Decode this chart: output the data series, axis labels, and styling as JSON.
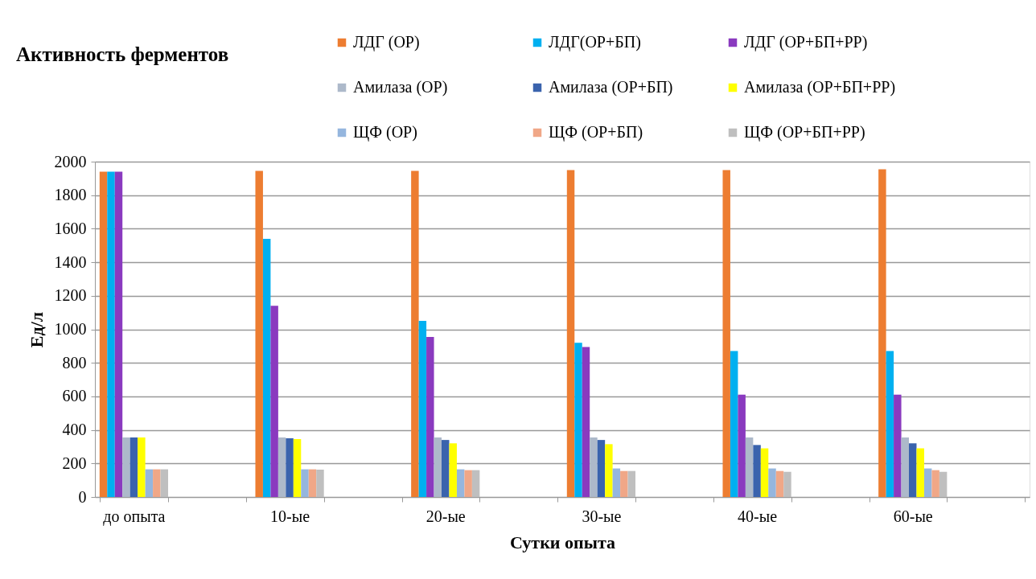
{
  "chart_data": {
    "type": "bar",
    "title": "Активность ферментов",
    "xlabel": "Сутки опыта",
    "ylabel": "Ед/л",
    "categories": [
      "до опыта",
      null,
      "10-ые",
      null,
      "20-ые",
      null,
      "30-ые",
      null,
      "40-ые",
      null,
      "60-ые",
      null
    ],
    "series": [
      {
        "name": "ЛДГ (ОР)",
        "color": "#ed7d31",
        "values": [
          1940,
          null,
          1945,
          null,
          1945,
          null,
          1950,
          null,
          1950,
          null,
          1955,
          null
        ]
      },
      {
        "name": "ЛДГ(ОР+БП)",
        "color": "#00b0f0",
        "values": [
          1940,
          null,
          1540,
          null,
          1050,
          null,
          920,
          null,
          870,
          null,
          870,
          null
        ]
      },
      {
        "name": "ЛДГ  (ОР+БП+РР)",
        "color": "#8a3abf",
        "values": [
          1940,
          null,
          1140,
          null,
          955,
          null,
          895,
          null,
          610,
          null,
          610,
          null
        ]
      },
      {
        "name": "Амилаза (ОР)",
        "color": "#adb9ca",
        "values": [
          355,
          null,
          355,
          null,
          355,
          null,
          355,
          null,
          355,
          null,
          355,
          null
        ]
      },
      {
        "name": "Амилаза (ОР+БП)",
        "color": "#3a63ad",
        "values": [
          355,
          null,
          350,
          null,
          340,
          null,
          340,
          null,
          310,
          null,
          320,
          null
        ]
      },
      {
        "name": "Амилаза (ОР+БП+РР)",
        "color": "#ffff00",
        "values": [
          355,
          null,
          345,
          null,
          320,
          null,
          315,
          null,
          290,
          null,
          290,
          null
        ]
      },
      {
        "name": "ЩФ  (ОР)",
        "color": "#95b6de",
        "values": [
          165,
          null,
          165,
          null,
          165,
          null,
          170,
          null,
          170,
          null,
          170,
          null
        ]
      },
      {
        "name": "ЩФ (ОР+БП)",
        "color": "#f0a787",
        "values": [
          165,
          null,
          165,
          null,
          160,
          null,
          155,
          null,
          155,
          null,
          160,
          null
        ]
      },
      {
        "name": "ЩФ (ОР+БП+РР)",
        "color": "#bfbfbf",
        "values": [
          165,
          null,
          163,
          null,
          160,
          null,
          155,
          null,
          150,
          null,
          150,
          null
        ]
      }
    ],
    "ylim": [
      0,
      2000
    ],
    "yticks": [
      0,
      200,
      400,
      600,
      800,
      1000,
      1200,
      1400,
      1600,
      1800,
      2000
    ],
    "grid": "y",
    "legend": "top"
  }
}
